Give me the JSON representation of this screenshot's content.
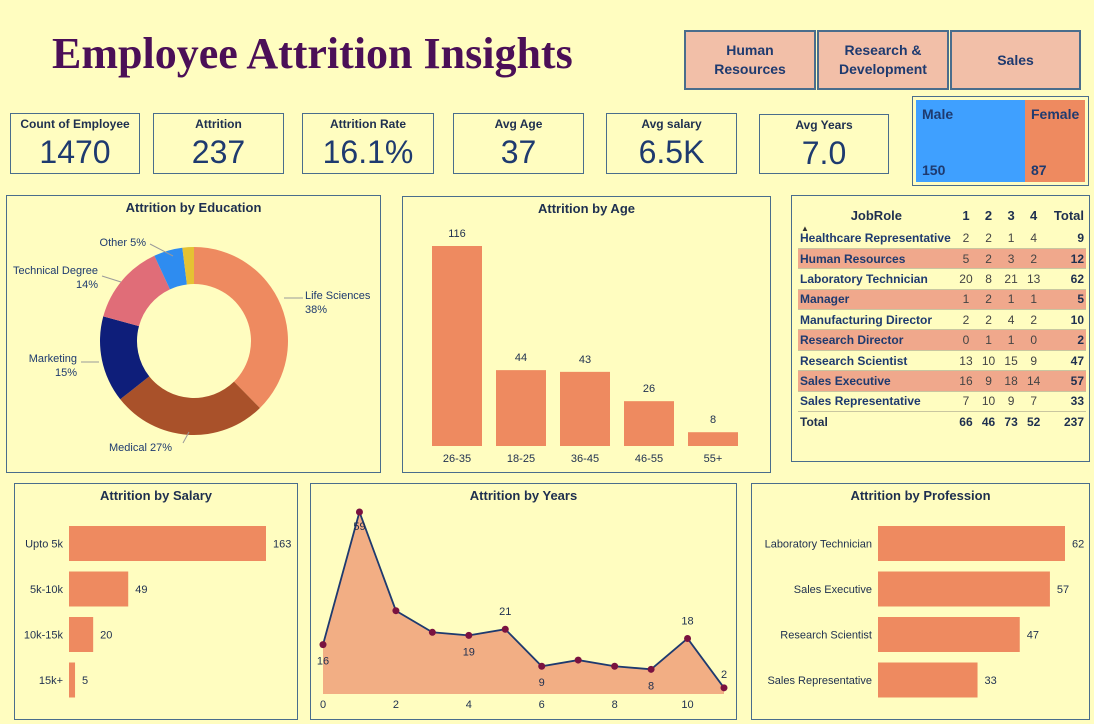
{
  "title": "Employee Attrition Insights",
  "departments": [
    "Human Resources",
    "Research & Development",
    "Sales"
  ],
  "kpis": {
    "count": {
      "label": "Count of Employee",
      "value": "1470"
    },
    "attrition": {
      "label": "Attrition",
      "value": "237"
    },
    "rate": {
      "label": "Attrition Rate",
      "value": "16.1%"
    },
    "age": {
      "label": "Avg Age",
      "value": "37"
    },
    "salary": {
      "label": "Avg salary",
      "value": "6.5K"
    },
    "years": {
      "label": "Avg Years",
      "value": "7.0"
    }
  },
  "gender": {
    "male": {
      "label": "Male",
      "value": "150"
    },
    "female": {
      "label": "Female",
      "value": "87"
    }
  },
  "jobrole_table": {
    "header": [
      "JobRole",
      "1",
      "2",
      "3",
      "4",
      "Total"
    ],
    "rows": [
      [
        "Healthcare Representative",
        "2",
        "2",
        "1",
        "4",
        "9"
      ],
      [
        "Human Resources",
        "5",
        "2",
        "3",
        "2",
        "12"
      ],
      [
        "Laboratory Technician",
        "20",
        "8",
        "21",
        "13",
        "62"
      ],
      [
        "Manager",
        "1",
        "2",
        "1",
        "1",
        "5"
      ],
      [
        "Manufacturing Director",
        "2",
        "2",
        "4",
        "2",
        "10"
      ],
      [
        "Research Director",
        "0",
        "1",
        "1",
        "0",
        "2"
      ],
      [
        "Research Scientist",
        "13",
        "10",
        "15",
        "9",
        "47"
      ],
      [
        "Sales Executive",
        "16",
        "9",
        "18",
        "14",
        "57"
      ],
      [
        "Sales Representative",
        "7",
        "10",
        "9",
        "7",
        "33"
      ]
    ],
    "total": [
      "Total",
      "66",
      "46",
      "73",
      "52",
      "237"
    ]
  },
  "chart_data": [
    {
      "type": "pie",
      "title": "Attrition by Education",
      "categories": [
        "Life Sciences",
        "Medical",
        "Marketing",
        "Technical Degree",
        "Other",
        ""
      ],
      "values": [
        38,
        27,
        15,
        14,
        5,
        2
      ],
      "labels": [
        "Life Sciences 38%",
        "Medical 27%",
        "Marketing 15%",
        "Technical Degree 14%",
        "Other 5%",
        ""
      ],
      "colors": [
        "#EE8A60",
        "#A9512A",
        "#0E1E7A",
        "#E06D78",
        "#2E8CF0",
        "#E5C233"
      ]
    },
    {
      "type": "bar",
      "title": "Attrition by Age",
      "categories": [
        "26-35",
        "18-25",
        "36-45",
        "46-55",
        "55+"
      ],
      "values": [
        116,
        44,
        43,
        26,
        8
      ],
      "ylim": [
        0,
        116
      ]
    },
    {
      "type": "bar",
      "orientation": "horizontal",
      "title": "Attrition by Salary",
      "categories": [
        "Upto 5k",
        "5k-10k",
        "10k-15k",
        "15k+"
      ],
      "values": [
        163,
        49,
        20,
        5
      ],
      "xlim": [
        0,
        163
      ]
    },
    {
      "type": "area",
      "title": "Attrition by Years",
      "x": [
        0,
        1,
        2,
        3,
        4,
        5,
        6,
        7,
        8,
        9,
        10,
        11
      ],
      "y": [
        16,
        59,
        27,
        20,
        19,
        21,
        9,
        11,
        9,
        8,
        18,
        2
      ],
      "point_labels": [
        "16",
        "59",
        "",
        "",
        "19",
        "21",
        "9",
        "",
        "",
        "8",
        "18",
        "2"
      ],
      "x_ticks": [
        0,
        2,
        4,
        6,
        8,
        10
      ],
      "ylim": [
        0,
        59
      ]
    },
    {
      "type": "bar",
      "orientation": "horizontal",
      "title": "Attrition by Profession",
      "categories": [
        "Laboratory Technician",
        "Sales Executive",
        "Research Scientist",
        "Sales Representative"
      ],
      "values": [
        62,
        57,
        47,
        33
      ],
      "xlim": [
        0,
        62
      ]
    }
  ],
  "colors": {
    "bar": "#EE8A60",
    "area": "#F2AE84",
    "line": "#1E3A6F",
    "marker": "#7A1240",
    "background": "#FFFDC0"
  }
}
